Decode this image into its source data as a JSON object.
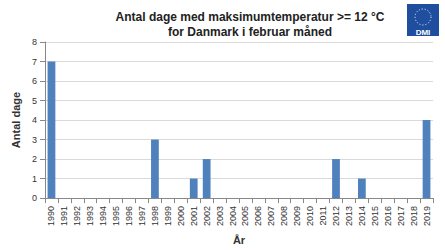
{
  "chart_data": {
    "type": "bar",
    "title": "Antal dage med maksimumtemperatur >= 12 °C\nfor Danmark i februar måned",
    "x_label": "År",
    "y_label": "Antal dage",
    "annotations": [
      "DMI"
    ],
    "categories": [
      "1990",
      "1991",
      "1992",
      "1993",
      "1994",
      "1995",
      "1996",
      "1997",
      "1998",
      "1999",
      "2000",
      "2001",
      "2002",
      "2003",
      "2004",
      "2005",
      "2006",
      "2007",
      "2008",
      "2009",
      "2010",
      "2011",
      "2012",
      "2013",
      "2014",
      "2015",
      "2016",
      "2017",
      "2018",
      "2019"
    ],
    "values": [
      7,
      0,
      0,
      0,
      0,
      0,
      0,
      0,
      3,
      0,
      0,
      1,
      2,
      0,
      0,
      0,
      0,
      0,
      0,
      0,
      0,
      0,
      2,
      0,
      1,
      0,
      0,
      0,
      0,
      4
    ],
    "color": "#4f81bd",
    "ylim": [
      0,
      8
    ],
    "yticks": [
      0,
      1,
      2,
      3,
      4,
      5,
      6,
      7,
      8
    ],
    "grid": true
  }
}
